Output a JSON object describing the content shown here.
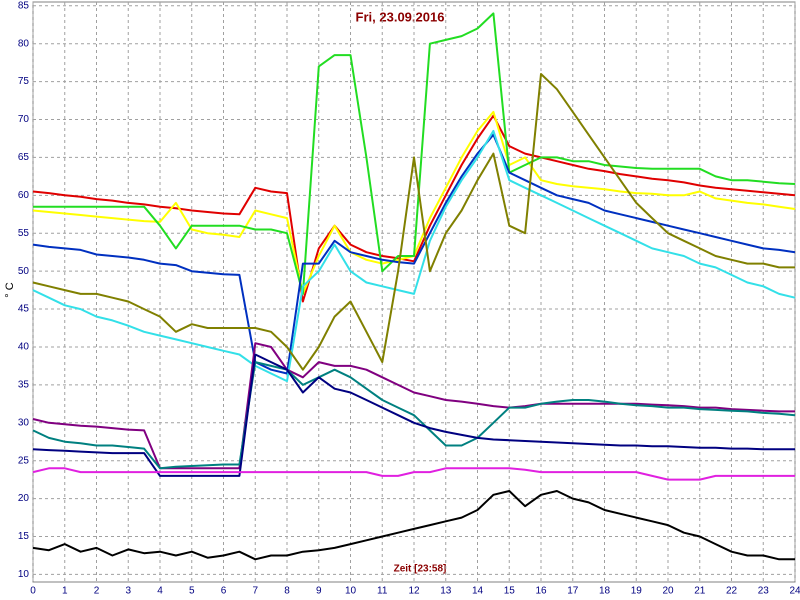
{
  "chart_data": {
    "type": "line",
    "title": "Fri, 23.09.2016",
    "x_label": "Zeit [23:58]",
    "y_label": "° C",
    "x": [
      0,
      0.5,
      1,
      1.5,
      2,
      2.5,
      3,
      3.5,
      4,
      4.5,
      5,
      5.5,
      6,
      6.5,
      7,
      7.5,
      8,
      8.5,
      9,
      9.5,
      10,
      10.5,
      11,
      11.5,
      12,
      12.5,
      13,
      13.5,
      14,
      14.5,
      15,
      15.5,
      16,
      16.5,
      17,
      17.5,
      18,
      18.5,
      19,
      19.5,
      20,
      20.5,
      21,
      21.5,
      22,
      22.5,
      23,
      23.5,
      24
    ],
    "xlim": [
      0,
      24
    ],
    "xticks": [
      0,
      1,
      2,
      3,
      4,
      5,
      6,
      7,
      8,
      9,
      10,
      11,
      12,
      13,
      14,
      15,
      16,
      17,
      18,
      19,
      20,
      21,
      22,
      23,
      24
    ],
    "ylim": [
      9,
      85.5
    ],
    "yticks": [
      10,
      15,
      20,
      25,
      30,
      35,
      40,
      45,
      50,
      55,
      60,
      65,
      70,
      75,
      80,
      85
    ],
    "grid": true,
    "series": [
      {
        "color": "#e00000",
        "values": [
          60.5,
          60.3,
          60,
          59.8,
          59.5,
          59.3,
          59,
          58.8,
          58.5,
          58.3,
          58,
          57.8,
          57.6,
          57.5,
          61,
          60.5,
          60.3,
          46,
          53,
          56,
          53.5,
          52.5,
          52,
          51.7,
          51.3,
          56,
          60,
          64,
          67.5,
          70.5,
          66.5,
          65.5,
          65,
          64.5,
          64,
          63.5,
          63.2,
          62.8,
          62.5,
          62.2,
          62,
          61.7,
          61.3,
          61,
          60.8,
          60.6,
          60.4,
          60.2,
          60
        ]
      },
      {
        "color": "#ffff00",
        "values": [
          58,
          57.8,
          57.6,
          57.4,
          57.2,
          57,
          56.8,
          56.6,
          56.5,
          59,
          55.5,
          55,
          54.8,
          54.5,
          58,
          57.5,
          57,
          47,
          52,
          56,
          52.5,
          51.5,
          51,
          51.5,
          52,
          57,
          61,
          65,
          68.5,
          71,
          64,
          65,
          62,
          61.5,
          61.2,
          61,
          60.8,
          60.5,
          60.3,
          60.2,
          60,
          60,
          60.5,
          59.6,
          59.3,
          59,
          58.8,
          58.5,
          58.2
        ]
      },
      {
        "color": "#22dd22",
        "values": [
          58.5,
          58.5,
          58.5,
          58.5,
          58.5,
          58.5,
          58.5,
          58.5,
          56,
          53,
          56,
          56,
          56,
          56,
          55.5,
          55.5,
          55,
          47,
          77,
          78.5,
          78.5,
          65,
          50,
          52,
          52,
          80,
          80.5,
          81,
          82,
          84,
          63,
          64,
          65,
          65,
          64.5,
          64.5,
          64,
          63.8,
          63.6,
          63.5,
          63.5,
          63.5,
          63.5,
          62.5,
          62,
          62,
          61.8,
          61.6,
          61.5
        ]
      },
      {
        "color": "#0030c0",
        "values": [
          53.5,
          53.2,
          53,
          52.8,
          52.2,
          52,
          51.8,
          51.5,
          51,
          50.8,
          50,
          49.8,
          49.6,
          49.5,
          38,
          37,
          36.5,
          51,
          51,
          54,
          52.5,
          52,
          51.5,
          51.2,
          51,
          55,
          59,
          62.5,
          65.5,
          68,
          63,
          62,
          61,
          60,
          59.5,
          59,
          58,
          57.5,
          57,
          56.5,
          56,
          55.5,
          55,
          54.5,
          54,
          53.5,
          53,
          52.8,
          52.5
        ]
      },
      {
        "color": "#33e0e8",
        "values": [
          47.5,
          46.5,
          45.5,
          45,
          44,
          43.5,
          42.8,
          42,
          41.5,
          41,
          40.5,
          40,
          39.5,
          39,
          37.5,
          36.5,
          35.5,
          48,
          50,
          53.5,
          50,
          48.5,
          48,
          47.5,
          47,
          54,
          58.5,
          62,
          65,
          68.5,
          62,
          61,
          60,
          59,
          58,
          57,
          56,
          55,
          54,
          53,
          52.5,
          52,
          51,
          50.5,
          49.5,
          48.5,
          48,
          47,
          46.5
        ]
      },
      {
        "color": "#808000",
        "values": [
          48.5,
          48,
          47.5,
          47,
          47,
          46.5,
          46,
          45,
          44,
          42,
          43,
          42.5,
          42.5,
          42.5,
          42.5,
          42,
          40,
          37,
          40,
          44,
          46,
          42,
          38,
          50,
          65,
          50,
          55,
          58,
          62,
          65.5,
          56,
          55,
          76,
          74,
          71,
          68,
          65,
          62,
          59,
          57,
          55,
          54,
          53,
          52,
          51.5,
          51,
          51,
          50.5,
          50.5
        ]
      },
      {
        "color": "#800080",
        "values": [
          30.5,
          30,
          29.8,
          29.6,
          29.5,
          29.3,
          29.1,
          29,
          24,
          24,
          24,
          24,
          24,
          24,
          40.5,
          40,
          37,
          36,
          38,
          37.5,
          37.5,
          37,
          36,
          35,
          34,
          33.5,
          33,
          32.8,
          32.5,
          32.2,
          32,
          32.2,
          32.5,
          32.5,
          32.5,
          32.5,
          32.5,
          32.5,
          32.5,
          32.4,
          32.3,
          32.2,
          32,
          32,
          31.8,
          31.7,
          31.6,
          31.5,
          31.5
        ]
      },
      {
        "color": "#008080",
        "values": [
          29,
          28,
          27.5,
          27.3,
          27,
          27,
          26.8,
          26.6,
          24,
          24.2,
          24.3,
          24.4,
          24.5,
          24.5,
          38,
          37.5,
          37,
          35,
          36,
          37,
          36,
          34.5,
          33,
          32,
          31,
          29,
          27,
          27,
          28,
          30,
          32,
          32,
          32.5,
          32.8,
          33,
          33,
          32.8,
          32.5,
          32.3,
          32.2,
          32,
          32,
          31.8,
          31.7,
          31.6,
          31.5,
          31.3,
          31.2,
          31
        ]
      },
      {
        "color": "#000080",
        "values": [
          26.5,
          26.4,
          26.3,
          26.2,
          26.1,
          26,
          26,
          26,
          23,
          23,
          23,
          23,
          23,
          23,
          39,
          38,
          37,
          34,
          36,
          34.5,
          34,
          33,
          32,
          31,
          30,
          29.3,
          28.8,
          28.4,
          28,
          27.8,
          27.7,
          27.6,
          27.5,
          27.4,
          27.3,
          27.2,
          27.1,
          27,
          27,
          26.9,
          26.9,
          26.8,
          26.7,
          26.7,
          26.6,
          26.6,
          26.5,
          26.5,
          26.5
        ]
      },
      {
        "color": "#e020e0",
        "values": [
          23.5,
          24,
          24,
          23.5,
          23.5,
          23.5,
          23.5,
          23.5,
          23.5,
          23.5,
          23.5,
          23.5,
          23.5,
          23.5,
          23.5,
          23.5,
          23.5,
          23.5,
          23.5,
          23.5,
          23.5,
          23.5,
          23,
          23,
          23.5,
          23.5,
          24,
          24,
          24,
          24,
          24,
          23.8,
          23.5,
          23.5,
          23.5,
          23.5,
          23.5,
          23.5,
          23.5,
          23,
          22.5,
          22.5,
          22.5,
          23,
          23,
          23,
          23,
          23,
          23
        ]
      },
      {
        "color": "#000000",
        "values": [
          13.5,
          13.2,
          14,
          13,
          13.5,
          12.5,
          13.3,
          12.8,
          13,
          12.5,
          13,
          12.2,
          12.5,
          13,
          12,
          12.5,
          12.5,
          13,
          13.2,
          13.5,
          14,
          14.5,
          15,
          15.5,
          16,
          16.5,
          17,
          17.5,
          18.5,
          20.5,
          21,
          19,
          20.5,
          21,
          20,
          19.5,
          18.5,
          18,
          17.5,
          17,
          16.5,
          15.5,
          15,
          14,
          13,
          12.5,
          12.5,
          12,
          12
        ]
      }
    ]
  }
}
